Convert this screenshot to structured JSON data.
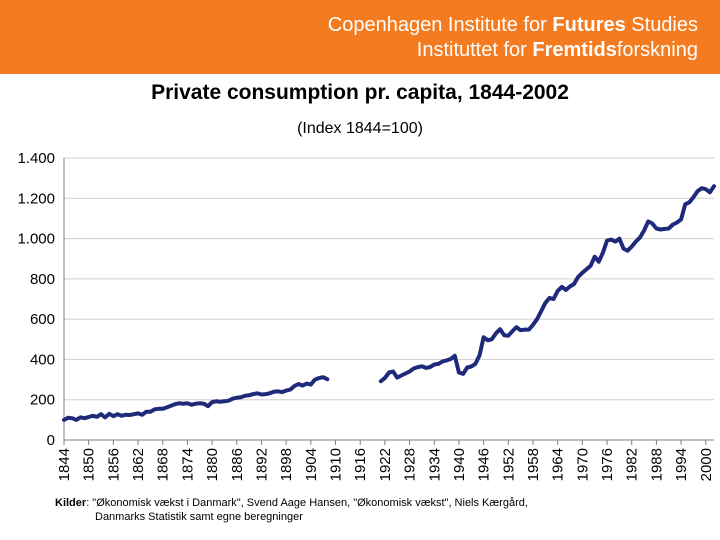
{
  "header": {
    "line1_prefix": "Copenhagen Institute for ",
    "line1_bold": "Futures",
    "line1_suffix": " Studies",
    "line2_prefix": "Instituttet for ",
    "line2_bold": "Fremtids",
    "line2_suffix": "forskning",
    "background_color": "#f47b20"
  },
  "source": {
    "label": "Kilder",
    "line1": ": \"Økonomisk vækst i Danmark\", Svend Aage Hansen, \"Økonomisk vækst\", Niels Kærgård,",
    "line2": "Danmarks Statistik samt egne beregninger"
  },
  "chart_data": {
    "type": "line",
    "title": "Private consumption pr. capita, 1844-2002",
    "subtitle": "(Index 1844=100)",
    "xlabel": "",
    "ylabel": "",
    "x_ticks": [
      1844,
      1850,
      1856,
      1862,
      1868,
      1874,
      1880,
      1886,
      1892,
      1898,
      1904,
      1910,
      1916,
      1922,
      1928,
      1934,
      1940,
      1946,
      1952,
      1958,
      1964,
      1970,
      1976,
      1982,
      1988,
      1994,
      2000
    ],
    "y_ticks": [
      0,
      200,
      400,
      600,
      800,
      1000,
      1200,
      1400
    ],
    "y_tick_labels": [
      "0",
      "200",
      "400",
      "600",
      "800",
      "1.000",
      "1.200",
      "1.400"
    ],
    "xlim": [
      1844,
      2002
    ],
    "ylim": [
      0,
      1400
    ],
    "grid": true,
    "line_color": "#1f2a7a",
    "series": [
      {
        "segments": [
          [
            [
              1844,
              100
            ],
            [
              1845,
              110
            ],
            [
              1846,
              108
            ],
            [
              1847,
              100
            ],
            [
              1848,
              112
            ],
            [
              1849,
              108
            ],
            [
              1850,
              114
            ],
            [
              1851,
              120
            ],
            [
              1852,
              115
            ],
            [
              1853,
              128
            ],
            [
              1854,
              112
            ],
            [
              1855,
              130
            ],
            [
              1856,
              118
            ],
            [
              1857,
              128
            ],
            [
              1858,
              120
            ],
            [
              1859,
              125
            ],
            [
              1860,
              124
            ],
            [
              1861,
              128
            ],
            [
              1862,
              132
            ],
            [
              1863,
              125
            ],
            [
              1864,
              140
            ],
            [
              1865,
              140
            ],
            [
              1866,
              152
            ],
            [
              1867,
              155
            ],
            [
              1868,
              155
            ],
            [
              1869,
              162
            ],
            [
              1870,
              170
            ],
            [
              1871,
              178
            ],
            [
              1872,
              182
            ],
            [
              1873,
              180
            ],
            [
              1874,
              182
            ],
            [
              1875,
              175
            ],
            [
              1876,
              180
            ],
            [
              1877,
              182
            ],
            [
              1878,
              180
            ],
            [
              1879,
              168
            ],
            [
              1880,
              188
            ],
            [
              1881,
              192
            ],
            [
              1882,
              190
            ],
            [
              1883,
              192
            ],
            [
              1884,
              195
            ],
            [
              1885,
              205
            ],
            [
              1886,
              210
            ],
            [
              1887,
              212
            ],
            [
              1888,
              220
            ],
            [
              1889,
              222
            ],
            [
              1890,
              228
            ],
            [
              1891,
              232
            ],
            [
              1892,
              226
            ],
            [
              1893,
              228
            ],
            [
              1894,
              232
            ],
            [
              1895,
              240
            ],
            [
              1896,
              242
            ],
            [
              1897,
              238
            ],
            [
              1898,
              245
            ],
            [
              1899,
              250
            ],
            [
              1900,
              268
            ],
            [
              1901,
              278
            ],
            [
              1902,
              270
            ],
            [
              1903,
              280
            ],
            [
              1904,
              275
            ],
            [
              1905,
              300
            ],
            [
              1906,
              308
            ],
            [
              1907,
              312
            ],
            [
              1908,
              302
            ]
          ],
          [
            [
              1921,
              292
            ],
            [
              1922,
              308
            ],
            [
              1923,
              335
            ],
            [
              1924,
              340
            ],
            [
              1925,
              310
            ],
            [
              1926,
              320
            ],
            [
              1927,
              330
            ],
            [
              1928,
              340
            ],
            [
              1929,
              355
            ],
            [
              1930,
              362
            ],
            [
              1931,
              366
            ],
            [
              1932,
              358
            ],
            [
              1933,
              362
            ],
            [
              1934,
              375
            ],
            [
              1935,
              378
            ],
            [
              1936,
              390
            ],
            [
              1937,
              395
            ],
            [
              1938,
              402
            ],
            [
              1939,
              418
            ],
            [
              1940,
              335
            ],
            [
              1941,
              328
            ],
            [
              1942,
              360
            ],
            [
              1943,
              365
            ],
            [
              1944,
              378
            ],
            [
              1945,
              420
            ],
            [
              1946,
              510
            ],
            [
              1947,
              495
            ],
            [
              1948,
              500
            ],
            [
              1949,
              530
            ],
            [
              1950,
              550
            ],
            [
              1951,
              520
            ],
            [
              1952,
              518
            ],
            [
              1953,
              540
            ],
            [
              1954,
              560
            ],
            [
              1955,
              545
            ],
            [
              1956,
              548
            ],
            [
              1957,
              548
            ],
            [
              1958,
              572
            ],
            [
              1959,
              600
            ],
            [
              1960,
              640
            ],
            [
              1961,
              680
            ],
            [
              1962,
              705
            ],
            [
              1963,
              700
            ],
            [
              1964,
              740
            ],
            [
              1965,
              760
            ],
            [
              1966,
              745
            ],
            [
              1967,
              762
            ],
            [
              1968,
              775
            ],
            [
              1969,
              810
            ],
            [
              1970,
              830
            ],
            [
              1971,
              848
            ],
            [
              1972,
              865
            ],
            [
              1973,
              910
            ],
            [
              1974,
              885
            ],
            [
              1975,
              930
            ],
            [
              1976,
              990
            ],
            [
              1977,
              995
            ],
            [
              1978,
              985
            ],
            [
              1979,
              1000
            ],
            [
              1980,
              950
            ],
            [
              1981,
              940
            ],
            [
              1982,
              960
            ],
            [
              1983,
              985
            ],
            [
              1984,
              1005
            ],
            [
              1985,
              1040
            ],
            [
              1986,
              1085
            ],
            [
              1987,
              1075
            ],
            [
              1988,
              1050
            ],
            [
              1989,
              1045
            ],
            [
              1990,
              1048
            ],
            [
              1991,
              1050
            ],
            [
              1992,
              1070
            ],
            [
              1993,
              1080
            ],
            [
              1994,
              1095
            ],
            [
              1995,
              1170
            ],
            [
              1996,
              1180
            ],
            [
              1997,
              1205
            ],
            [
              1998,
              1235
            ],
            [
              1999,
              1250
            ],
            [
              2000,
              1245
            ],
            [
              2001,
              1230
            ],
            [
              2002,
              1260
            ]
          ]
        ]
      }
    ]
  }
}
